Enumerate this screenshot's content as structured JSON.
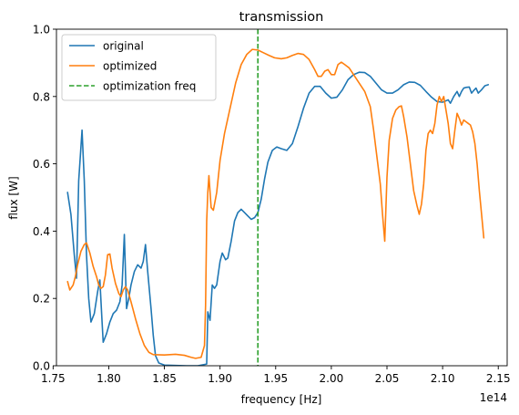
{
  "chart_data": {
    "type": "line",
    "title": "transmission",
    "xlabel": "frequency [Hz]",
    "ylabel": "flux [W]",
    "offset_text": "1e14",
    "xlim": [
      1.753,
      2.158
    ],
    "ylim": [
      0.0,
      1.0
    ],
    "xticks": [
      1.75,
      1.8,
      1.85,
      1.9,
      1.95,
      2.0,
      2.05,
      2.1,
      2.15
    ],
    "xtick_labels": [
      "1.75",
      "1.80",
      "1.85",
      "1.90",
      "1.95",
      "2.00",
      "2.05",
      "2.10",
      "2.15"
    ],
    "yticks": [
      0.0,
      0.2,
      0.4,
      0.6,
      0.8,
      1.0
    ],
    "ytick_labels": [
      "0.0",
      "0.2",
      "0.4",
      "0.6",
      "0.8",
      "1.0"
    ],
    "grid": false,
    "legend_position": "top-left",
    "series": [
      {
        "name": "original",
        "color": "#1f77b4",
        "style": "solid",
        "points": [
          [
            1.763,
            0.515
          ],
          [
            1.766,
            0.45
          ],
          [
            1.769,
            0.33
          ],
          [
            1.771,
            0.26
          ],
          [
            1.773,
            0.55
          ],
          [
            1.776,
            0.7
          ],
          [
            1.778,
            0.55
          ],
          [
            1.78,
            0.33
          ],
          [
            1.782,
            0.2
          ],
          [
            1.784,
            0.13
          ],
          [
            1.787,
            0.155
          ],
          [
            1.79,
            0.22
          ],
          [
            1.792,
            0.255
          ],
          [
            1.794,
            0.13
          ],
          [
            1.795,
            0.07
          ],
          [
            1.798,
            0.095
          ],
          [
            1.801,
            0.13
          ],
          [
            1.804,
            0.155
          ],
          [
            1.807,
            0.165
          ],
          [
            1.81,
            0.19
          ],
          [
            1.812,
            0.24
          ],
          [
            1.814,
            0.39
          ],
          [
            1.816,
            0.17
          ],
          [
            1.818,
            0.2
          ],
          [
            1.82,
            0.24
          ],
          [
            1.823,
            0.28
          ],
          [
            1.826,
            0.3
          ],
          [
            1.829,
            0.29
          ],
          [
            1.831,
            0.31
          ],
          [
            1.833,
            0.36
          ],
          [
            1.835,
            0.28
          ],
          [
            1.838,
            0.17
          ],
          [
            1.84,
            0.09
          ],
          [
            1.842,
            0.03
          ],
          [
            1.845,
            0.008
          ],
          [
            1.85,
            0.002
          ],
          [
            1.86,
            0.001
          ],
          [
            1.87,
            0.0
          ],
          [
            1.88,
            0.0
          ],
          [
            1.888,
            0.005
          ],
          [
            1.889,
            0.16
          ],
          [
            1.891,
            0.135
          ],
          [
            1.893,
            0.24
          ],
          [
            1.895,
            0.23
          ],
          [
            1.897,
            0.24
          ],
          [
            1.9,
            0.31
          ],
          [
            1.902,
            0.335
          ],
          [
            1.905,
            0.315
          ],
          [
            1.907,
            0.32
          ],
          [
            1.91,
            0.37
          ],
          [
            1.913,
            0.43
          ],
          [
            1.916,
            0.455
          ],
          [
            1.919,
            0.465
          ],
          [
            1.922,
            0.455
          ],
          [
            1.925,
            0.445
          ],
          [
            1.928,
            0.435
          ],
          [
            1.931,
            0.44
          ],
          [
            1.934,
            0.455
          ],
          [
            1.937,
            0.495
          ],
          [
            1.94,
            0.555
          ],
          [
            1.943,
            0.605
          ],
          [
            1.947,
            0.64
          ],
          [
            1.951,
            0.65
          ],
          [
            1.955,
            0.645
          ],
          [
            1.96,
            0.64
          ],
          [
            1.965,
            0.66
          ],
          [
            1.97,
            0.71
          ],
          [
            1.975,
            0.765
          ],
          [
            1.98,
            0.81
          ],
          [
            1.985,
            0.83
          ],
          [
            1.99,
            0.83
          ],
          [
            1.995,
            0.81
          ],
          [
            2.0,
            0.795
          ],
          [
            2.005,
            0.798
          ],
          [
            2.01,
            0.82
          ],
          [
            2.015,
            0.85
          ],
          [
            2.02,
            0.865
          ],
          [
            2.025,
            0.872
          ],
          [
            2.03,
            0.871
          ],
          [
            2.035,
            0.86
          ],
          [
            2.04,
            0.84
          ],
          [
            2.045,
            0.82
          ],
          [
            2.05,
            0.81
          ],
          [
            2.055,
            0.81
          ],
          [
            2.06,
            0.82
          ],
          [
            2.065,
            0.835
          ],
          [
            2.07,
            0.843
          ],
          [
            2.075,
            0.842
          ],
          [
            2.08,
            0.833
          ],
          [
            2.085,
            0.815
          ],
          [
            2.09,
            0.798
          ],
          [
            2.095,
            0.785
          ],
          [
            2.1,
            0.783
          ],
          [
            2.105,
            0.79
          ],
          [
            2.107,
            0.78
          ],
          [
            2.11,
            0.8
          ],
          [
            2.113,
            0.815
          ],
          [
            2.115,
            0.8
          ],
          [
            2.117,
            0.815
          ],
          [
            2.119,
            0.825
          ],
          [
            2.121,
            0.827
          ],
          [
            2.124,
            0.828
          ],
          [
            2.126,
            0.81
          ],
          [
            2.128,
            0.818
          ],
          [
            2.13,
            0.825
          ],
          [
            2.132,
            0.81
          ],
          [
            2.135,
            0.82
          ],
          [
            2.138,
            0.832
          ],
          [
            2.141,
            0.835
          ]
        ]
      },
      {
        "name": "optimized",
        "color": "#ff7f0e",
        "style": "solid",
        "points": [
          [
            1.763,
            0.25
          ],
          [
            1.765,
            0.225
          ],
          [
            1.768,
            0.24
          ],
          [
            1.77,
            0.265
          ],
          [
            1.772,
            0.3
          ],
          [
            1.775,
            0.34
          ],
          [
            1.778,
            0.36
          ],
          [
            1.78,
            0.365
          ],
          [
            1.783,
            0.335
          ],
          [
            1.786,
            0.295
          ],
          [
            1.789,
            0.265
          ],
          [
            1.791,
            0.24
          ],
          [
            1.793,
            0.23
          ],
          [
            1.795,
            0.235
          ],
          [
            1.797,
            0.27
          ],
          [
            1.799,
            0.33
          ],
          [
            1.801,
            0.332
          ],
          [
            1.803,
            0.29
          ],
          [
            1.806,
            0.245
          ],
          [
            1.809,
            0.215
          ],
          [
            1.811,
            0.205
          ],
          [
            1.813,
            0.225
          ],
          [
            1.815,
            0.235
          ],
          [
            1.817,
            0.225
          ],
          [
            1.82,
            0.19
          ],
          [
            1.824,
            0.14
          ],
          [
            1.828,
            0.095
          ],
          [
            1.832,
            0.06
          ],
          [
            1.836,
            0.04
          ],
          [
            1.84,
            0.033
          ],
          [
            1.85,
            0.032
          ],
          [
            1.86,
            0.034
          ],
          [
            1.868,
            0.031
          ],
          [
            1.874,
            0.025
          ],
          [
            1.878,
            0.022
          ],
          [
            1.883,
            0.025
          ],
          [
            1.886,
            0.06
          ],
          [
            1.887,
            0.18
          ],
          [
            1.888,
            0.43
          ],
          [
            1.889,
            0.515
          ],
          [
            1.89,
            0.565
          ],
          [
            1.892,
            0.47
          ],
          [
            1.894,
            0.462
          ],
          [
            1.897,
            0.515
          ],
          [
            1.9,
            0.61
          ],
          [
            1.904,
            0.69
          ],
          [
            1.909,
            0.765
          ],
          [
            1.914,
            0.84
          ],
          [
            1.919,
            0.895
          ],
          [
            1.924,
            0.925
          ],
          [
            1.929,
            0.94
          ],
          [
            1.934,
            0.938
          ],
          [
            1.939,
            0.93
          ],
          [
            1.944,
            0.922
          ],
          [
            1.949,
            0.915
          ],
          [
            1.955,
            0.912
          ],
          [
            1.96,
            0.915
          ],
          [
            1.965,
            0.922
          ],
          [
            1.97,
            0.928
          ],
          [
            1.975,
            0.925
          ],
          [
            1.98,
            0.91
          ],
          [
            1.985,
            0.88
          ],
          [
            1.988,
            0.86
          ],
          [
            1.991,
            0.86
          ],
          [
            1.994,
            0.875
          ],
          [
            1.997,
            0.88
          ],
          [
            2.0,
            0.865
          ],
          [
            2.003,
            0.865
          ],
          [
            2.006,
            0.895
          ],
          [
            2.009,
            0.902
          ],
          [
            2.012,
            0.895
          ],
          [
            2.016,
            0.885
          ],
          [
            2.02,
            0.865
          ],
          [
            2.025,
            0.84
          ],
          [
            2.03,
            0.815
          ],
          [
            2.035,
            0.77
          ],
          [
            2.038,
            0.7
          ],
          [
            2.041,
            0.62
          ],
          [
            2.044,
            0.54
          ],
          [
            2.046,
            0.45
          ],
          [
            2.048,
            0.37
          ],
          [
            2.05,
            0.56
          ],
          [
            2.052,
            0.67
          ],
          [
            2.055,
            0.735
          ],
          [
            2.058,
            0.76
          ],
          [
            2.061,
            0.77
          ],
          [
            2.063,
            0.772
          ],
          [
            2.065,
            0.74
          ],
          [
            2.068,
            0.68
          ],
          [
            2.071,
            0.6
          ],
          [
            2.074,
            0.52
          ],
          [
            2.077,
            0.475
          ],
          [
            2.079,
            0.45
          ],
          [
            2.081,
            0.48
          ],
          [
            2.083,
            0.54
          ],
          [
            2.085,
            0.64
          ],
          [
            2.087,
            0.69
          ],
          [
            2.089,
            0.7
          ],
          [
            2.091,
            0.69
          ],
          [
            2.093,
            0.72
          ],
          [
            2.095,
            0.775
          ],
          [
            2.097,
            0.8
          ],
          [
            2.099,
            0.785
          ],
          [
            2.101,
            0.8
          ],
          [
            2.103,
            0.76
          ],
          [
            2.105,
            0.72
          ],
          [
            2.107,
            0.66
          ],
          [
            2.109,
            0.645
          ],
          [
            2.111,
            0.7
          ],
          [
            2.113,
            0.75
          ],
          [
            2.115,
            0.735
          ],
          [
            2.117,
            0.715
          ],
          [
            2.119,
            0.73
          ],
          [
            2.121,
            0.725
          ],
          [
            2.123,
            0.72
          ],
          [
            2.125,
            0.715
          ],
          [
            2.127,
            0.695
          ],
          [
            2.129,
            0.66
          ],
          [
            2.131,
            0.6
          ],
          [
            2.133,
            0.52
          ],
          [
            2.135,
            0.45
          ],
          [
            2.137,
            0.38
          ]
        ]
      },
      {
        "name": "optimization freq",
        "color": "#2ca02c",
        "style": "dashed",
        "vertical_x": 1.934
      }
    ]
  }
}
